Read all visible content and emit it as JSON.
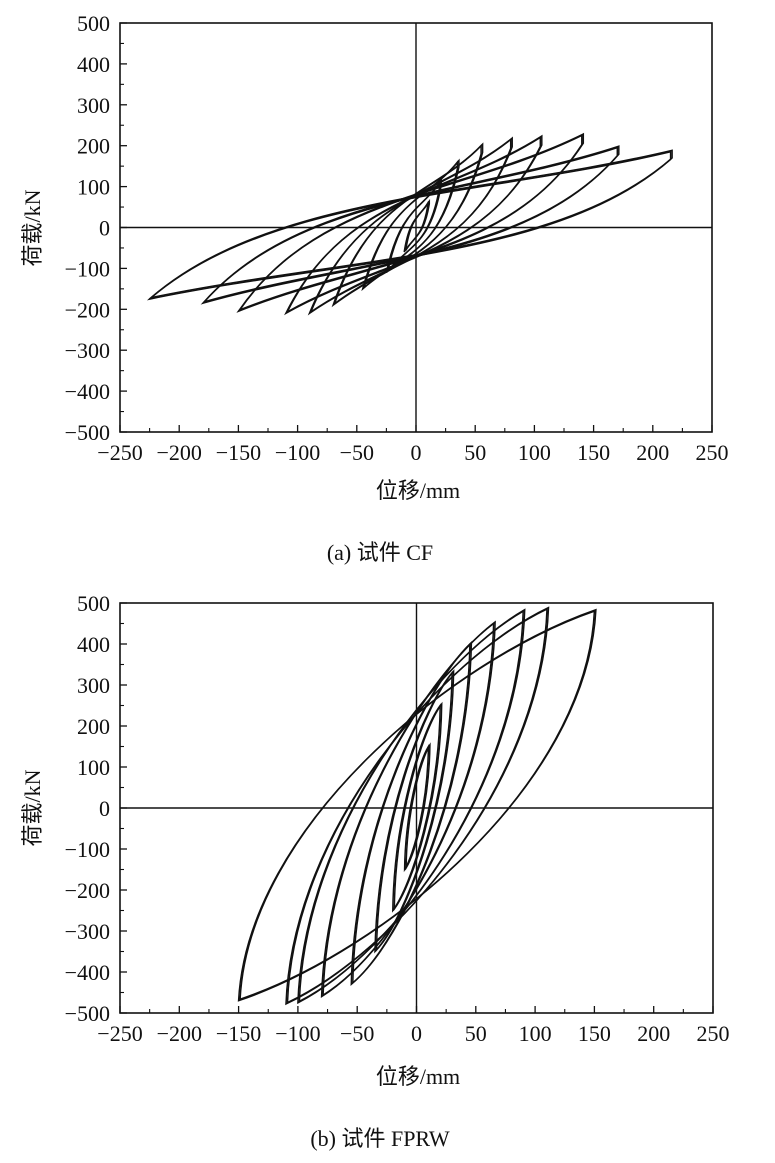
{
  "chart_data": [
    {
      "type": "line",
      "caption": "(a)  试件 CF",
      "xlabel": "位移/mm",
      "ylabel": "荷载/kN",
      "xlim": [
        -250,
        250
      ],
      "ylim": [
        -500,
        500
      ],
      "xticks": [
        -250,
        -200,
        -150,
        -100,
        -50,
        0,
        50,
        100,
        150,
        200,
        250
      ],
      "yticks": [
        -500,
        -400,
        -300,
        -200,
        -100,
        0,
        100,
        200,
        300,
        400,
        500
      ],
      "zero_lines": true,
      "grid": false,
      "curve": "hysteresis loops (pinched)",
      "loops": [
        {
          "pos_peak": [
            10,
            60
          ],
          "neg_peak": [
            -10,
            -60
          ]
        },
        {
          "pos_peak": [
            20,
            110
          ],
          "neg_peak": [
            -25,
            -110
          ]
        },
        {
          "pos_peak": [
            35,
            160
          ],
          "neg_peak": [
            -45,
            -150
          ]
        },
        {
          "pos_peak": [
            55,
            200
          ],
          "neg_peak": [
            -70,
            -190
          ]
        },
        {
          "pos_peak": [
            80,
            215
          ],
          "neg_peak": [
            -90,
            -210
          ]
        },
        {
          "pos_peak": [
            105,
            220
          ],
          "neg_peak": [
            -110,
            -210
          ]
        },
        {
          "pos_peak": [
            140,
            225
          ],
          "neg_peak": [
            -150,
            -205
          ]
        },
        {
          "pos_peak": [
            170,
            195
          ],
          "neg_peak": [
            -180,
            -185
          ]
        },
        {
          "pos_peak": [
            215,
            185
          ],
          "neg_peak": [
            -225,
            -175
          ]
        }
      ]
    },
    {
      "type": "line",
      "caption": "(b)  试件 FPRW",
      "xlabel": "位移/mm",
      "ylabel": "荷载/kN",
      "xlim": [
        -250,
        250
      ],
      "ylim": [
        -500,
        500
      ],
      "xticks": [
        -250,
        -200,
        -150,
        -100,
        -50,
        0,
        50,
        100,
        150,
        200,
        250
      ],
      "yticks": [
        -500,
        -400,
        -300,
        -200,
        -100,
        0,
        100,
        200,
        300,
        400,
        500
      ],
      "zero_lines": true,
      "grid": false,
      "curve": "hysteresis loops (wide)",
      "loops": [
        {
          "pos_peak": [
            10,
            150
          ],
          "neg_peak": [
            -10,
            -150
          ]
        },
        {
          "pos_peak": [
            20,
            250
          ],
          "neg_peak": [
            -20,
            -250
          ]
        },
        {
          "pos_peak": [
            30,
            330
          ],
          "neg_peak": [
            -35,
            -350
          ]
        },
        {
          "pos_peak": [
            45,
            400
          ],
          "neg_peak": [
            -55,
            -430
          ]
        },
        {
          "pos_peak": [
            65,
            450
          ],
          "neg_peak": [
            -80,
            -460
          ]
        },
        {
          "pos_peak": [
            90,
            480
          ],
          "neg_peak": [
            -100,
            -475
          ]
        },
        {
          "pos_peak": [
            110,
            485
          ],
          "neg_peak": [
            -110,
            -478
          ]
        },
        {
          "pos_peak": [
            150,
            480
          ],
          "neg_peak": [
            -150,
            -470
          ]
        }
      ]
    }
  ]
}
